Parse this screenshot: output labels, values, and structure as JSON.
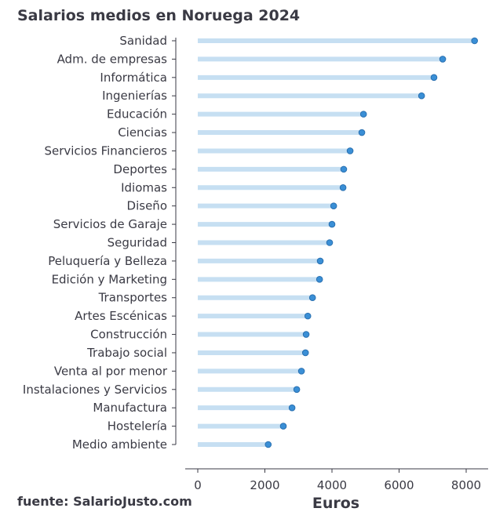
{
  "chart_data": {
    "type": "lollipop",
    "orientation": "horizontal",
    "title": "Salarios medios en Noruega 2024",
    "xlabel": "Euros",
    "ylabel": "",
    "source": "fuente: SalarioJusto.com",
    "xlim": [
      -400,
      8600
    ],
    "xticks": [
      0,
      2000,
      4000,
      6000,
      8000
    ],
    "xtick_labels": [
      "0",
      "2000",
      "4000",
      "6000",
      "8000"
    ],
    "grid": false,
    "colors": {
      "stem": "#c6dff2",
      "dot": "#3a8fd6",
      "dot_edge": "#2a70b0",
      "text": "#3a3a44"
    },
    "categories": [
      "Sanidad",
      "Adm. de empresas",
      "Informática",
      "Ingenierías",
      "Educación",
      "Ciencias",
      "Servicios Financieros",
      "Deportes",
      "Idiomas",
      "Diseño",
      "Servicios de Garaje",
      "Seguridad",
      "Peluquería y Belleza",
      "Edición y Marketing",
      "Transportes",
      "Artes Escénicas",
      "Construcción",
      "Trabajo social",
      "Venta al por menor",
      "Instalaciones y Servicios",
      "Manufactura",
      "Hostelería",
      "Medio ambiente"
    ],
    "values": [
      8250,
      7300,
      7040,
      6670,
      4940,
      4890,
      4540,
      4350,
      4330,
      4050,
      4000,
      3930,
      3650,
      3630,
      3420,
      3280,
      3230,
      3210,
      3090,
      2950,
      2810,
      2550,
      2100
    ]
  }
}
